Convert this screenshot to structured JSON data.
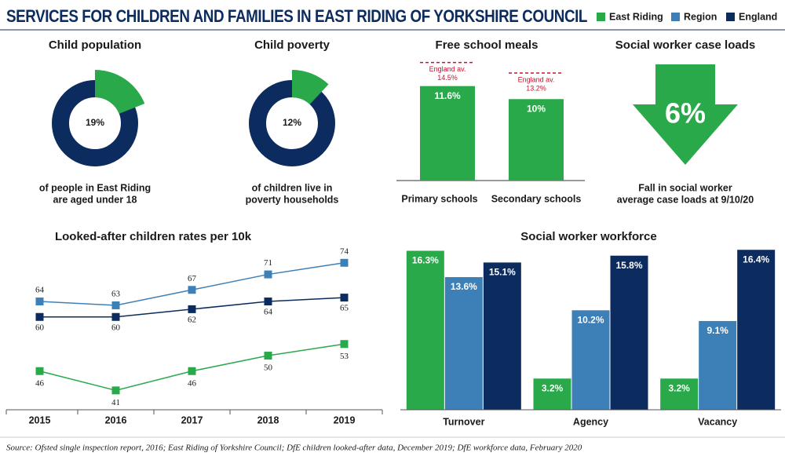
{
  "title": "SERVICES FOR CHILDREN AND FAMILIES IN EAST RIDING OF YORKSHIRE COUNCIL",
  "source": "Source: Ofsted single inspection report, 2016; East Riding of Yorkshire Council; DfE children looked-after data, December 2019; DfE workforce data, February 2020",
  "chart_data": [
    {
      "type": "donut",
      "title": "Child population",
      "values": [
        19
      ],
      "value_labels": [
        "19%"
      ],
      "colors": [
        "#2aa94b",
        "#0c2b5e"
      ],
      "caption": [
        "of people in East Riding",
        "are aged under 18"
      ]
    },
    {
      "type": "donut",
      "title": "Child poverty",
      "values": [
        12
      ],
      "value_labels": [
        "12%"
      ],
      "colors": [
        "#2aa94b",
        "#0c2b5e"
      ],
      "caption": [
        "of children live in",
        "poverty households"
      ]
    },
    {
      "type": "bar",
      "title": "Free school meals",
      "categories": [
        "Primary schools",
        "Secondary schools"
      ],
      "values": [
        11.6,
        10
      ],
      "value_labels": [
        "11.6%",
        "10%"
      ],
      "color": "#2aa94b",
      "ylim": [
        0,
        16
      ],
      "references": [
        {
          "label": "England av.",
          "value": 14.5,
          "value_label": "14.5%"
        },
        {
          "label": "England av.",
          "value": 13.2,
          "value_label": "13.2%"
        }
      ],
      "reference_color": "#c8102e"
    },
    {
      "type": "arrow",
      "title": "Social worker case loads",
      "values": [
        6
      ],
      "value_labels": [
        "6%"
      ],
      "color": "#2aa94b",
      "caption": [
        "Fall in social worker",
        "average case loads at 9/10/20"
      ]
    },
    {
      "type": "line",
      "title": "Looked-after children rates per 10k",
      "categories": [
        "2015",
        "2016",
        "2017",
        "2018",
        "2019"
      ],
      "ylim": [
        36,
        77
      ],
      "series": [
        {
          "name": "East Riding",
          "color": "#2aa94b",
          "values": [
            46,
            41,
            46,
            50,
            53
          ]
        },
        {
          "name": "Region",
          "color": "#3d80b8",
          "values": [
            64,
            63,
            67,
            71,
            74
          ]
        },
        {
          "name": "England",
          "color": "#0c2b5e",
          "values": [
            60,
            60,
            62,
            64,
            65
          ]
        }
      ]
    },
    {
      "type": "grouped_bar",
      "title": "Social worker workforce",
      "categories": [
        "Turnover",
        "Agency",
        "Vacancy"
      ],
      "ylim": [
        0,
        16.5
      ],
      "series": [
        {
          "name": "East Riding",
          "color": "#2aa94b",
          "values": [
            16.3,
            3.2,
            3.2
          ],
          "value_labels": [
            "16.3%",
            "3.2%",
            "3.2%"
          ]
        },
        {
          "name": "Region",
          "color": "#3d80b8",
          "values": [
            13.6,
            10.2,
            9.1
          ],
          "value_labels": [
            "13.6%",
            "10.2%",
            "9.1%"
          ]
        },
        {
          "name": "England",
          "color": "#0c2b5e",
          "values": [
            15.1,
            15.8,
            16.4
          ],
          "value_labels": [
            "15.1%",
            "15.8%",
            "16.4%"
          ]
        }
      ]
    }
  ]
}
